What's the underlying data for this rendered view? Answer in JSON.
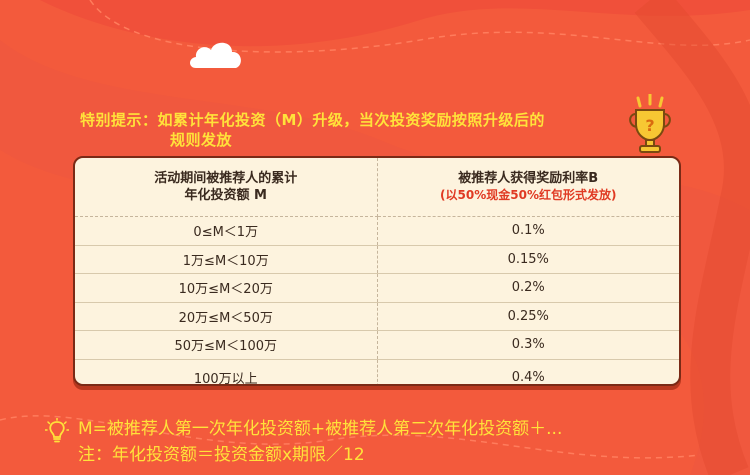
{
  "notice": {
    "line1": "特别提示：如累计年化投资（M）升级，当次投资奖励按照升级后的",
    "line2": "规则发放"
  },
  "table": {
    "header_left": "活动期间被推荐人的累计\n年化投资额   M",
    "header_left_1": "活动期间被推荐人的累计",
    "header_left_2": "年化投资额   M",
    "header_right_1": "被推荐人获得奖励利率B",
    "header_right_2": "(以50%现金50%红包形式发放)",
    "rows": [
      {
        "range": "0≤M＜1万",
        "rate": "0.1%"
      },
      {
        "range": "1万≤M＜10万",
        "rate": "0.15%"
      },
      {
        "range": "10万≤M＜20万",
        "rate": "0.2%"
      },
      {
        "range": "20万≤M＜50万",
        "rate": "0.25%"
      },
      {
        "range": "50万≤M＜100万",
        "rate": "0.3%"
      },
      {
        "range": "100万以上",
        "rate": "0.4%"
      }
    ]
  },
  "formula": {
    "line1": "M=被推荐人第一次年化投资额+被推荐人第二次年化投资额＋...",
    "line2": "注：年化投资额＝投资金额x期限／12"
  },
  "colors": {
    "background": "#f35a3c",
    "accent_yellow": "#ffe23a",
    "table_bg": "#fdf3de",
    "red_text": "#e03a23"
  }
}
